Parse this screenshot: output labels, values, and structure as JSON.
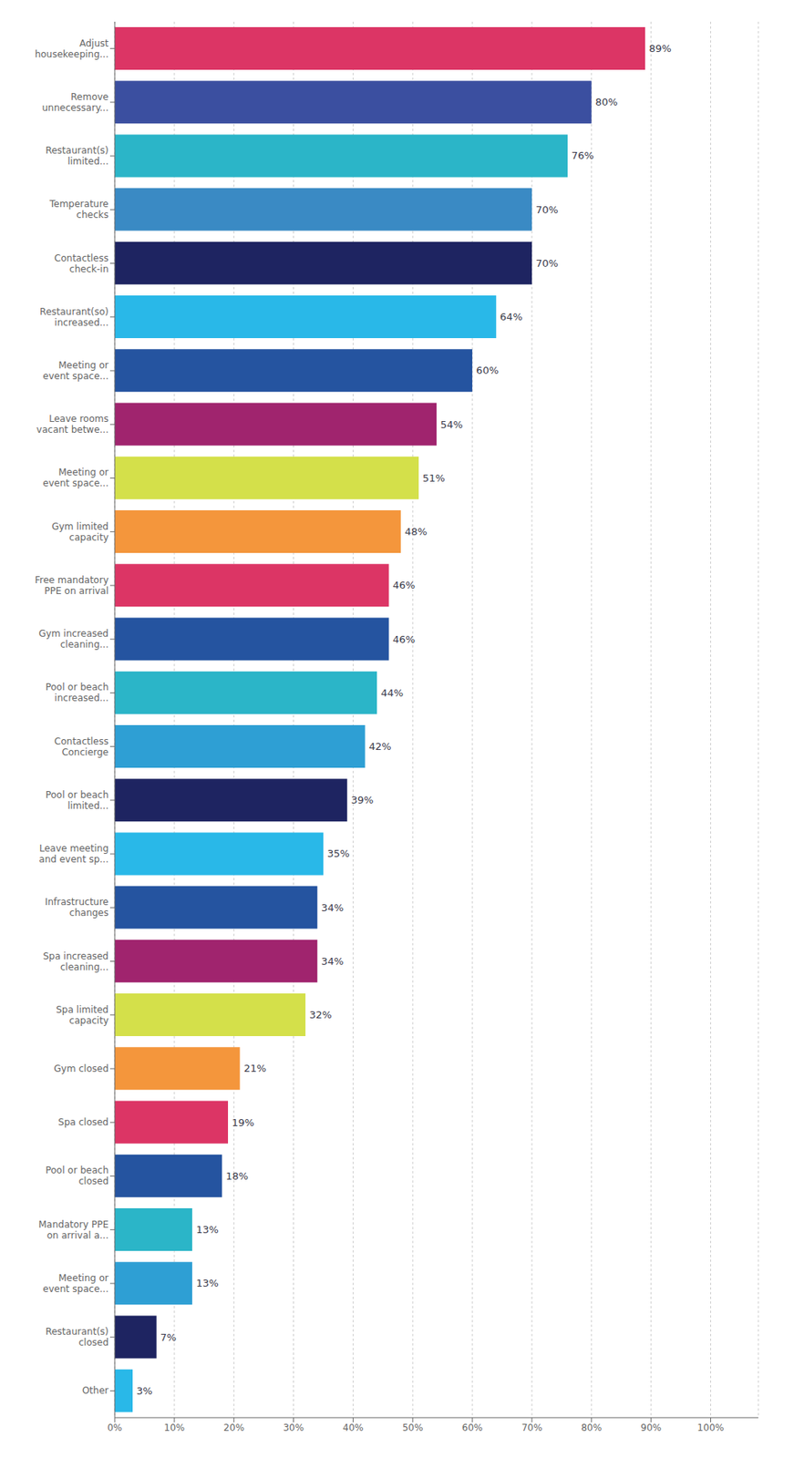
{
  "chart_data": {
    "type": "bar",
    "orientation": "horizontal",
    "categories": [
      "Adjust\nhousekeeping...",
      "Remove\nunnecessary...",
      "Restaurant(s)\nlimited...",
      "Temperature\nchecks",
      "Contactless\ncheck-in",
      "Restaurant(so)\nincreased...",
      "Meeting or\nevent space...",
      "Leave rooms\nvacant betwe...",
      "Meeting or\nevent space...",
      "Gym limited\ncapacity",
      "Free mandatory\nPPE on arrival",
      "Gym increased\ncleaning...",
      "Pool or beach\nincreased...",
      "Contactless\nConcierge",
      "Pool or beach\nlimited...",
      "Leave meeting\nand event sp...",
      "Infrastructure\nchanges",
      "Spa increased\ncleaning...",
      "Spa limited\ncapacity",
      "Gym closed",
      "Spa closed",
      "Pool or beach\nclosed",
      "Mandatory PPE\non arrival a...",
      "Meeting or\nevent space...",
      "Restaurant(s)\nclosed",
      "Other"
    ],
    "values": [
      89,
      80,
      76,
      70,
      70,
      64,
      60,
      54,
      51,
      48,
      46,
      46,
      44,
      42,
      39,
      35,
      34,
      34,
      32,
      21,
      19,
      18,
      13,
      13,
      7,
      3
    ],
    "value_labels": [
      "89%",
      "80%",
      "76%",
      "70%",
      "70%",
      "64%",
      "60%",
      "54%",
      "51%",
      "48%",
      "46%",
      "46%",
      "44%",
      "42%",
      "39%",
      "35%",
      "34%",
      "34%",
      "32%",
      "21%",
      "19%",
      "18%",
      "13%",
      "13%",
      "7%",
      "3%"
    ],
    "data_labels": true,
    "colors": [
      "#dc3565",
      "#3b4fa0",
      "#2bb5c8",
      "#3a8ac4",
      "#1e2461",
      "#29b8e8",
      "#2554a0",
      "#a0246e",
      "#d4e04a",
      "#f4963c",
      "#dc3565",
      "#2554a0",
      "#2bb5c8",
      "#2e9fd4",
      "#1e2461",
      "#29b8e8",
      "#2554a0",
      "#a0246e",
      "#d4e04a",
      "#f4963c",
      "#dc3565",
      "#2554a0",
      "#2bb5c8",
      "#2e9fd4",
      "#1e2461",
      "#29b8e8"
    ],
    "xlim": [
      0,
      108
    ],
    "xticks": [
      {
        "value": 0,
        "label": "0%"
      },
      {
        "value": 10,
        "label": "10%"
      },
      {
        "value": 20,
        "label": "20%"
      },
      {
        "value": 30,
        "label": "30%"
      },
      {
        "value": 40,
        "label": "40%"
      },
      {
        "value": 50,
        "label": "50%"
      },
      {
        "value": 60,
        "label": "60%"
      },
      {
        "value": 70,
        "label": "70%"
      },
      {
        "value": 80,
        "label": "80%"
      },
      {
        "value": 90,
        "label": "90%"
      },
      {
        "value": 100,
        "label": "100%"
      }
    ],
    "grid": true
  }
}
